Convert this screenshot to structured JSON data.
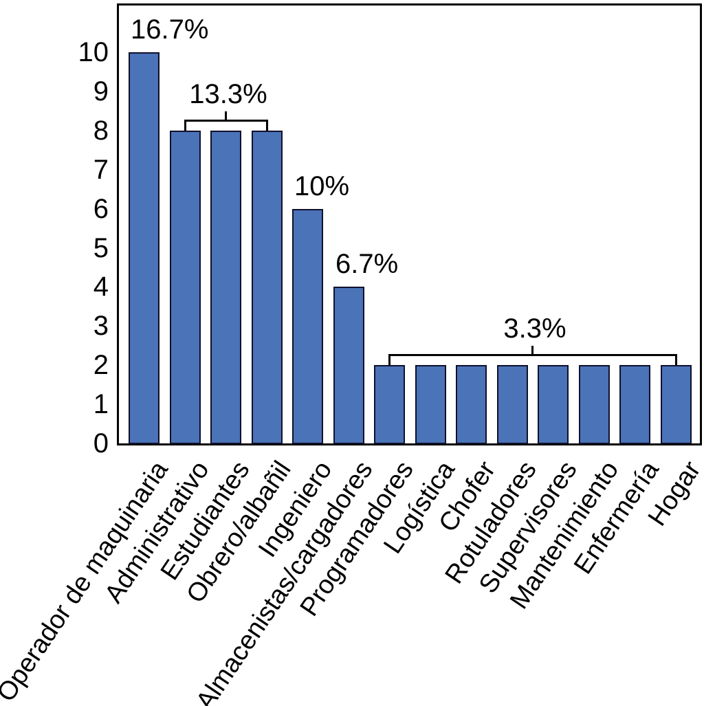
{
  "chart_data": {
    "type": "bar",
    "title": "",
    "xlabel": "",
    "ylabel": "",
    "categories": [
      "Operador de maquinaria",
      "Administrativo",
      "Estudiantes",
      "Obrero/albañil",
      "Ingeniero",
      "Almacenistas/cargadores",
      "Programadores",
      "Logística",
      "Chofer",
      "Rotuladores",
      "Supervisores",
      "Mantenimiento",
      "Enfermería",
      "Hogar"
    ],
    "values": [
      10,
      8,
      8,
      8,
      6,
      4,
      2,
      2,
      2,
      2,
      2,
      2,
      2,
      2
    ],
    "yticks": [
      0,
      1,
      2,
      3,
      4,
      5,
      6,
      7,
      8,
      9,
      10
    ],
    "ylim": [
      0,
      11.2
    ],
    "grid": false,
    "legend": null,
    "bar_fill_color": "#4A73B8",
    "bar_border_color": "#10102B",
    "axis_color": "#000000",
    "annotations": [
      {
        "label": "16.7%",
        "bar_start": 0,
        "bar_end": 0,
        "bracket": false
      },
      {
        "label": "13.3%",
        "bar_start": 1,
        "bar_end": 3,
        "bracket": true
      },
      {
        "label": "10%",
        "bar_start": 4,
        "bar_end": 4,
        "bracket": false
      },
      {
        "label": "6.7%",
        "bar_start": 5,
        "bar_end": 5,
        "bracket": false
      },
      {
        "label": "3.3%",
        "bar_start": 6,
        "bar_end": 13,
        "bracket": true
      }
    ]
  }
}
